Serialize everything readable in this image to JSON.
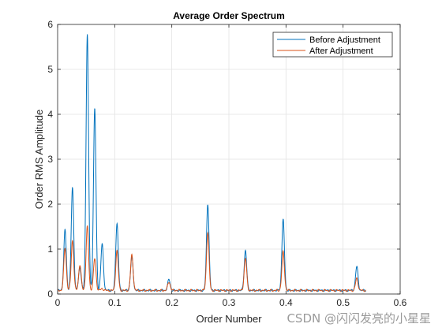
{
  "watermark": "CSDN @闪闪发亮的小星星",
  "chart_data": {
    "type": "line",
    "title": "Average Order Spectrum",
    "xlabel": "Order Number",
    "ylabel": "Order RMS Amplitude",
    "xlim": [
      0,
      0.6
    ],
    "ylim": [
      0,
      6
    ],
    "xticks": [
      0,
      0.1,
      0.2,
      0.3,
      0.4,
      0.5,
      0.6
    ],
    "xtick_labels": [
      "0",
      "0.1",
      "0.2",
      "0.3",
      "0.4",
      "0.5",
      "0.6"
    ],
    "yticks": [
      0,
      1,
      2,
      3,
      4,
      5,
      6
    ],
    "ytick_labels": [
      "0",
      "1",
      "2",
      "3",
      "4",
      "5",
      "6"
    ],
    "grid": true,
    "legend_position": "top-right",
    "x_range": [
      0,
      0.54
    ],
    "baseline": 0.08,
    "series": [
      {
        "name": "Before Adjustment",
        "color": "#0072BD",
        "peaks": [
          {
            "x": 0.013,
            "y": 1.43
          },
          {
            "x": 0.026,
            "y": 2.37
          },
          {
            "x": 0.039,
            "y": 0.6
          },
          {
            "x": 0.052,
            "y": 5.79
          },
          {
            "x": 0.065,
            "y": 4.13
          },
          {
            "x": 0.078,
            "y": 1.11
          },
          {
            "x": 0.104,
            "y": 1.58
          },
          {
            "x": 0.13,
            "y": 0.83
          },
          {
            "x": 0.195,
            "y": 0.32
          },
          {
            "x": 0.263,
            "y": 2.01
          },
          {
            "x": 0.329,
            "y": 0.97
          },
          {
            "x": 0.395,
            "y": 1.66
          },
          {
            "x": 0.524,
            "y": 0.61
          }
        ]
      },
      {
        "name": "After Adjustment",
        "color": "#D95319",
        "peaks": [
          {
            "x": 0.013,
            "y": 1.03
          },
          {
            "x": 0.026,
            "y": 1.19
          },
          {
            "x": 0.039,
            "y": 0.65
          },
          {
            "x": 0.052,
            "y": 1.5
          },
          {
            "x": 0.065,
            "y": 0.79
          },
          {
            "x": 0.078,
            "y": 0.12
          },
          {
            "x": 0.104,
            "y": 0.96
          },
          {
            "x": 0.13,
            "y": 0.87
          },
          {
            "x": 0.195,
            "y": 0.27
          },
          {
            "x": 0.263,
            "y": 1.37
          },
          {
            "x": 0.329,
            "y": 0.79
          },
          {
            "x": 0.395,
            "y": 0.94
          },
          {
            "x": 0.524,
            "y": 0.35
          }
        ]
      }
    ]
  }
}
